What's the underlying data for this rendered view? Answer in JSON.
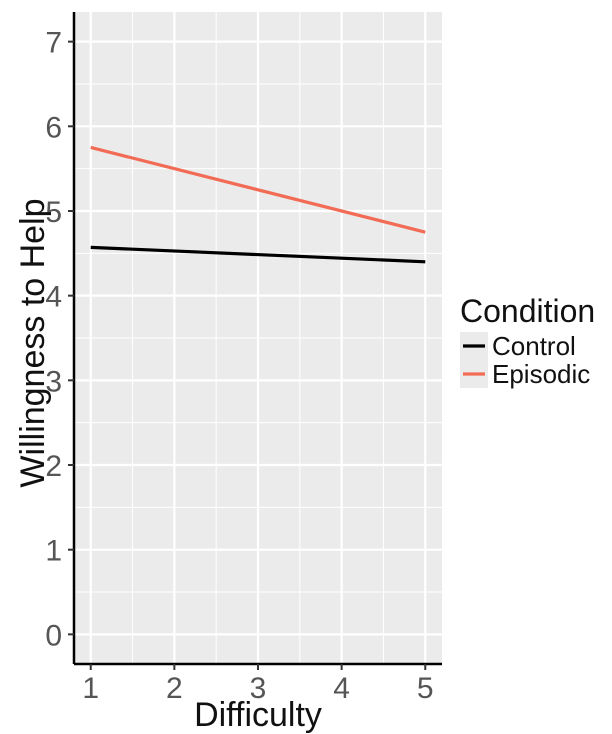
{
  "chart_data": {
    "type": "line",
    "x": [
      1,
      5
    ],
    "xlabel": "Difficulty",
    "ylabel": "Willingness to Help",
    "xlim": [
      0.8,
      5.2
    ],
    "ylim": [
      -0.35,
      7.35
    ],
    "xticks": [
      1,
      2,
      3,
      4,
      5
    ],
    "yticks": [
      0,
      1,
      2,
      3,
      4,
      5,
      6,
      7
    ],
    "grid": true,
    "legend": {
      "title": "Condition",
      "placement": "right"
    },
    "series": [
      {
        "name": "Control",
        "values": [
          4.57,
          4.4
        ],
        "color": "#000000"
      },
      {
        "name": "Episodic",
        "values": [
          5.75,
          4.75
        ],
        "color": "#f26b55"
      }
    ]
  },
  "colors": {
    "panel_background": "#ebebeb",
    "grid": "#ffffff"
  }
}
